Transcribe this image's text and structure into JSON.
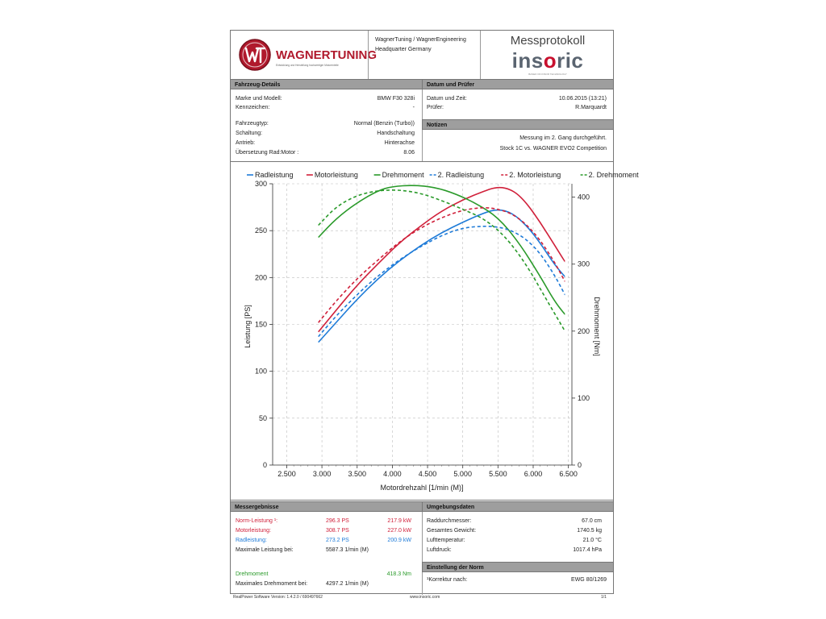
{
  "header": {
    "company_line1": "WagnerTuning / WagnerEngineering",
    "company_line2": "Headquarter Germany",
    "logo_text": "WAGNERTUNING",
    "logo_tagline": "Entwicklung und Herstellung hochwertiger Motorenteile",
    "report_title": "Messprotokoll",
    "brand": "insoric",
    "brand_sub": "BASED ON INSOR TECHNOLOGY"
  },
  "vehicle": {
    "title": "Fahrzeug-Details",
    "rows": [
      {
        "label": "Marke und Modell:",
        "value": "BMW F30 328i"
      },
      {
        "label": "Kennzeichen:",
        "value": "-"
      },
      {
        "label": "Fahrzeugtyp:",
        "value": "Normal (Benzin (Turbo))"
      },
      {
        "label": "Schaltung:",
        "value": "Handschaltung"
      },
      {
        "label": "Antrieb:",
        "value": "Hinterachse"
      },
      {
        "label": "Übersetzung Rad:Motor :",
        "value": "8.06"
      }
    ]
  },
  "date": {
    "title": "Datum und Prüfer",
    "rows": [
      {
        "label": "Datum und Zeit:",
        "value": "10.06.2015 (13:21)"
      },
      {
        "label": "Prüfer:",
        "value": "R.Marquardt"
      }
    ]
  },
  "notes": {
    "title": "Notizen",
    "line1": "Messung im 2. Gang durchgeführt.",
    "line2": "Stock 1C vs. WAGNER EVO2 Competition"
  },
  "chart_data": {
    "type": "line",
    "xlabel": "Motordrehzahl [1/min (M)]",
    "ylabel": "Leistung [PS]",
    "y2label": "Drehmoment [Nm]",
    "xlim": [
      2300,
      6550
    ],
    "ylim": [
      0,
      300
    ],
    "y2lim": [
      0,
      400
    ],
    "xticks": [
      "2.500",
      "3.000",
      "3.500",
      "4.000",
      "4.500",
      "5.000",
      "5.500",
      "6.000",
      "6.500"
    ],
    "yticks": [
      "0",
      "50",
      "100",
      "150",
      "200",
      "250",
      "300"
    ],
    "y2ticks": [
      "0",
      "100",
      "200",
      "300",
      "400"
    ],
    "grid": true,
    "legend": [
      "Radleistung",
      "Motorleistung",
      "Drehmoment",
      "2. Radleistung",
      "2. Motorleistung",
      "2. Drehmoment"
    ],
    "series": [
      {
        "name": "Radleistung",
        "color": "#1e7bd8",
        "dashed": false,
        "axis": "left",
        "x": [
          2950,
          3200,
          3500,
          3800,
          4100,
          4400,
          4700,
          5000,
          5300,
          5500,
          5700,
          5900,
          6100,
          6300,
          6450
        ],
        "y": [
          131,
          152,
          177,
          199,
          218,
          234,
          248,
          259,
          269,
          273,
          269,
          256,
          237,
          214,
          201
        ]
      },
      {
        "name": "Motorleistung",
        "color": "#d0203a",
        "dashed": false,
        "axis": "left",
        "x": [
          2950,
          3200,
          3500,
          3800,
          4100,
          4400,
          4700,
          5000,
          5300,
          5450,
          5600,
          5750,
          5900,
          6100,
          6300,
          6450
        ],
        "y": [
          142,
          165,
          192,
          215,
          237,
          255,
          271,
          283,
          292,
          296,
          296,
          291,
          280,
          259,
          235,
          217
        ]
      },
      {
        "name": "Drehmoment",
        "color": "#2a9a2a",
        "dashed": false,
        "axis": "right",
        "x": [
          2950,
          3200,
          3500,
          3800,
          4000,
          4300,
          4600,
          4900,
          5200,
          5500,
          5800,
          6100,
          6300,
          6450
        ],
        "y": [
          340,
          368,
          392,
          410,
          416,
          418,
          415,
          405,
          390,
          370,
          332,
          282,
          245,
          225
        ]
      },
      {
        "name": "2. Radleistung",
        "color": "#1e7bd8",
        "dashed": true,
        "axis": "left",
        "x": [
          2950,
          3200,
          3500,
          3800,
          4100,
          4400,
          4700,
          5000,
          5300,
          5500,
          5700,
          5900,
          6100,
          6300,
          6450
        ],
        "y": [
          137,
          159,
          182,
          202,
          219,
          233,
          245,
          253,
          255,
          254,
          250,
          241,
          226,
          203,
          182
        ]
      },
      {
        "name": "2. Motorleistung",
        "color": "#d0203a",
        "dashed": true,
        "axis": "left",
        "x": [
          2950,
          3200,
          3500,
          3800,
          4100,
          4400,
          4700,
          5000,
          5300,
          5500,
          5700,
          5900,
          6100,
          6300,
          6450
        ],
        "y": [
          152,
          175,
          199,
          219,
          238,
          253,
          264,
          272,
          275,
          273,
          268,
          257,
          240,
          217,
          196
        ]
      },
      {
        "name": "2. Drehmoment",
        "color": "#2a9a2a",
        "dashed": true,
        "axis": "right",
        "x": [
          2950,
          3200,
          3500,
          3800,
          4100,
          4400,
          4700,
          5000,
          5300,
          5600,
          5900,
          6200,
          6450
        ],
        "y": [
          358,
          386,
          403,
          410,
          411,
          406,
          395,
          382,
          368,
          342,
          300,
          245,
          200
        ]
      }
    ]
  },
  "results": {
    "title": "Messergebnisse",
    "rows": [
      {
        "label": "Norm-Leistung ¹:",
        "ps": "296.3  PS",
        "kw": "217.9  kW",
        "cls": "red"
      },
      {
        "label": "Motorleistung:",
        "ps": "308.7  PS",
        "kw": "227.0  kW",
        "cls": "red"
      },
      {
        "label": "Radleistung:",
        "ps": "273.2  PS",
        "kw": "200.9  kW",
        "cls": "blue"
      },
      {
        "label": "Maximale Leistung bei:",
        "ps": "5587.3  1/min  (M)",
        "kw": "",
        "cls": ""
      }
    ],
    "torque_label": "Drehmoment",
    "torque_value": "418.3  Nm",
    "max_torque_label": "Maximales Drehmoment bei:",
    "max_torque_value": "4297.2  1/min  (M)"
  },
  "environment": {
    "title": "Umgebungsdaten",
    "rows": [
      {
        "label": "Raddurchmesser:",
        "value": "67.0  cm"
      },
      {
        "label": "Gesamtes Gewicht:",
        "value": "1740.5  kg"
      },
      {
        "label": "Lufttemperatur:",
        "value": "21.0  °C"
      },
      {
        "label": "Luftdruck:",
        "value": "1017.4  hPa"
      }
    ]
  },
  "norm": {
    "title": "Einstellung der Norm",
    "label": "¹Korrektur nach:",
    "value": "EWG 80/1269"
  },
  "footer": {
    "software": "RealPower Software Version: 1.4.2.0 / 690497662",
    "url": "www.insoric.com",
    "page": "1/1"
  }
}
